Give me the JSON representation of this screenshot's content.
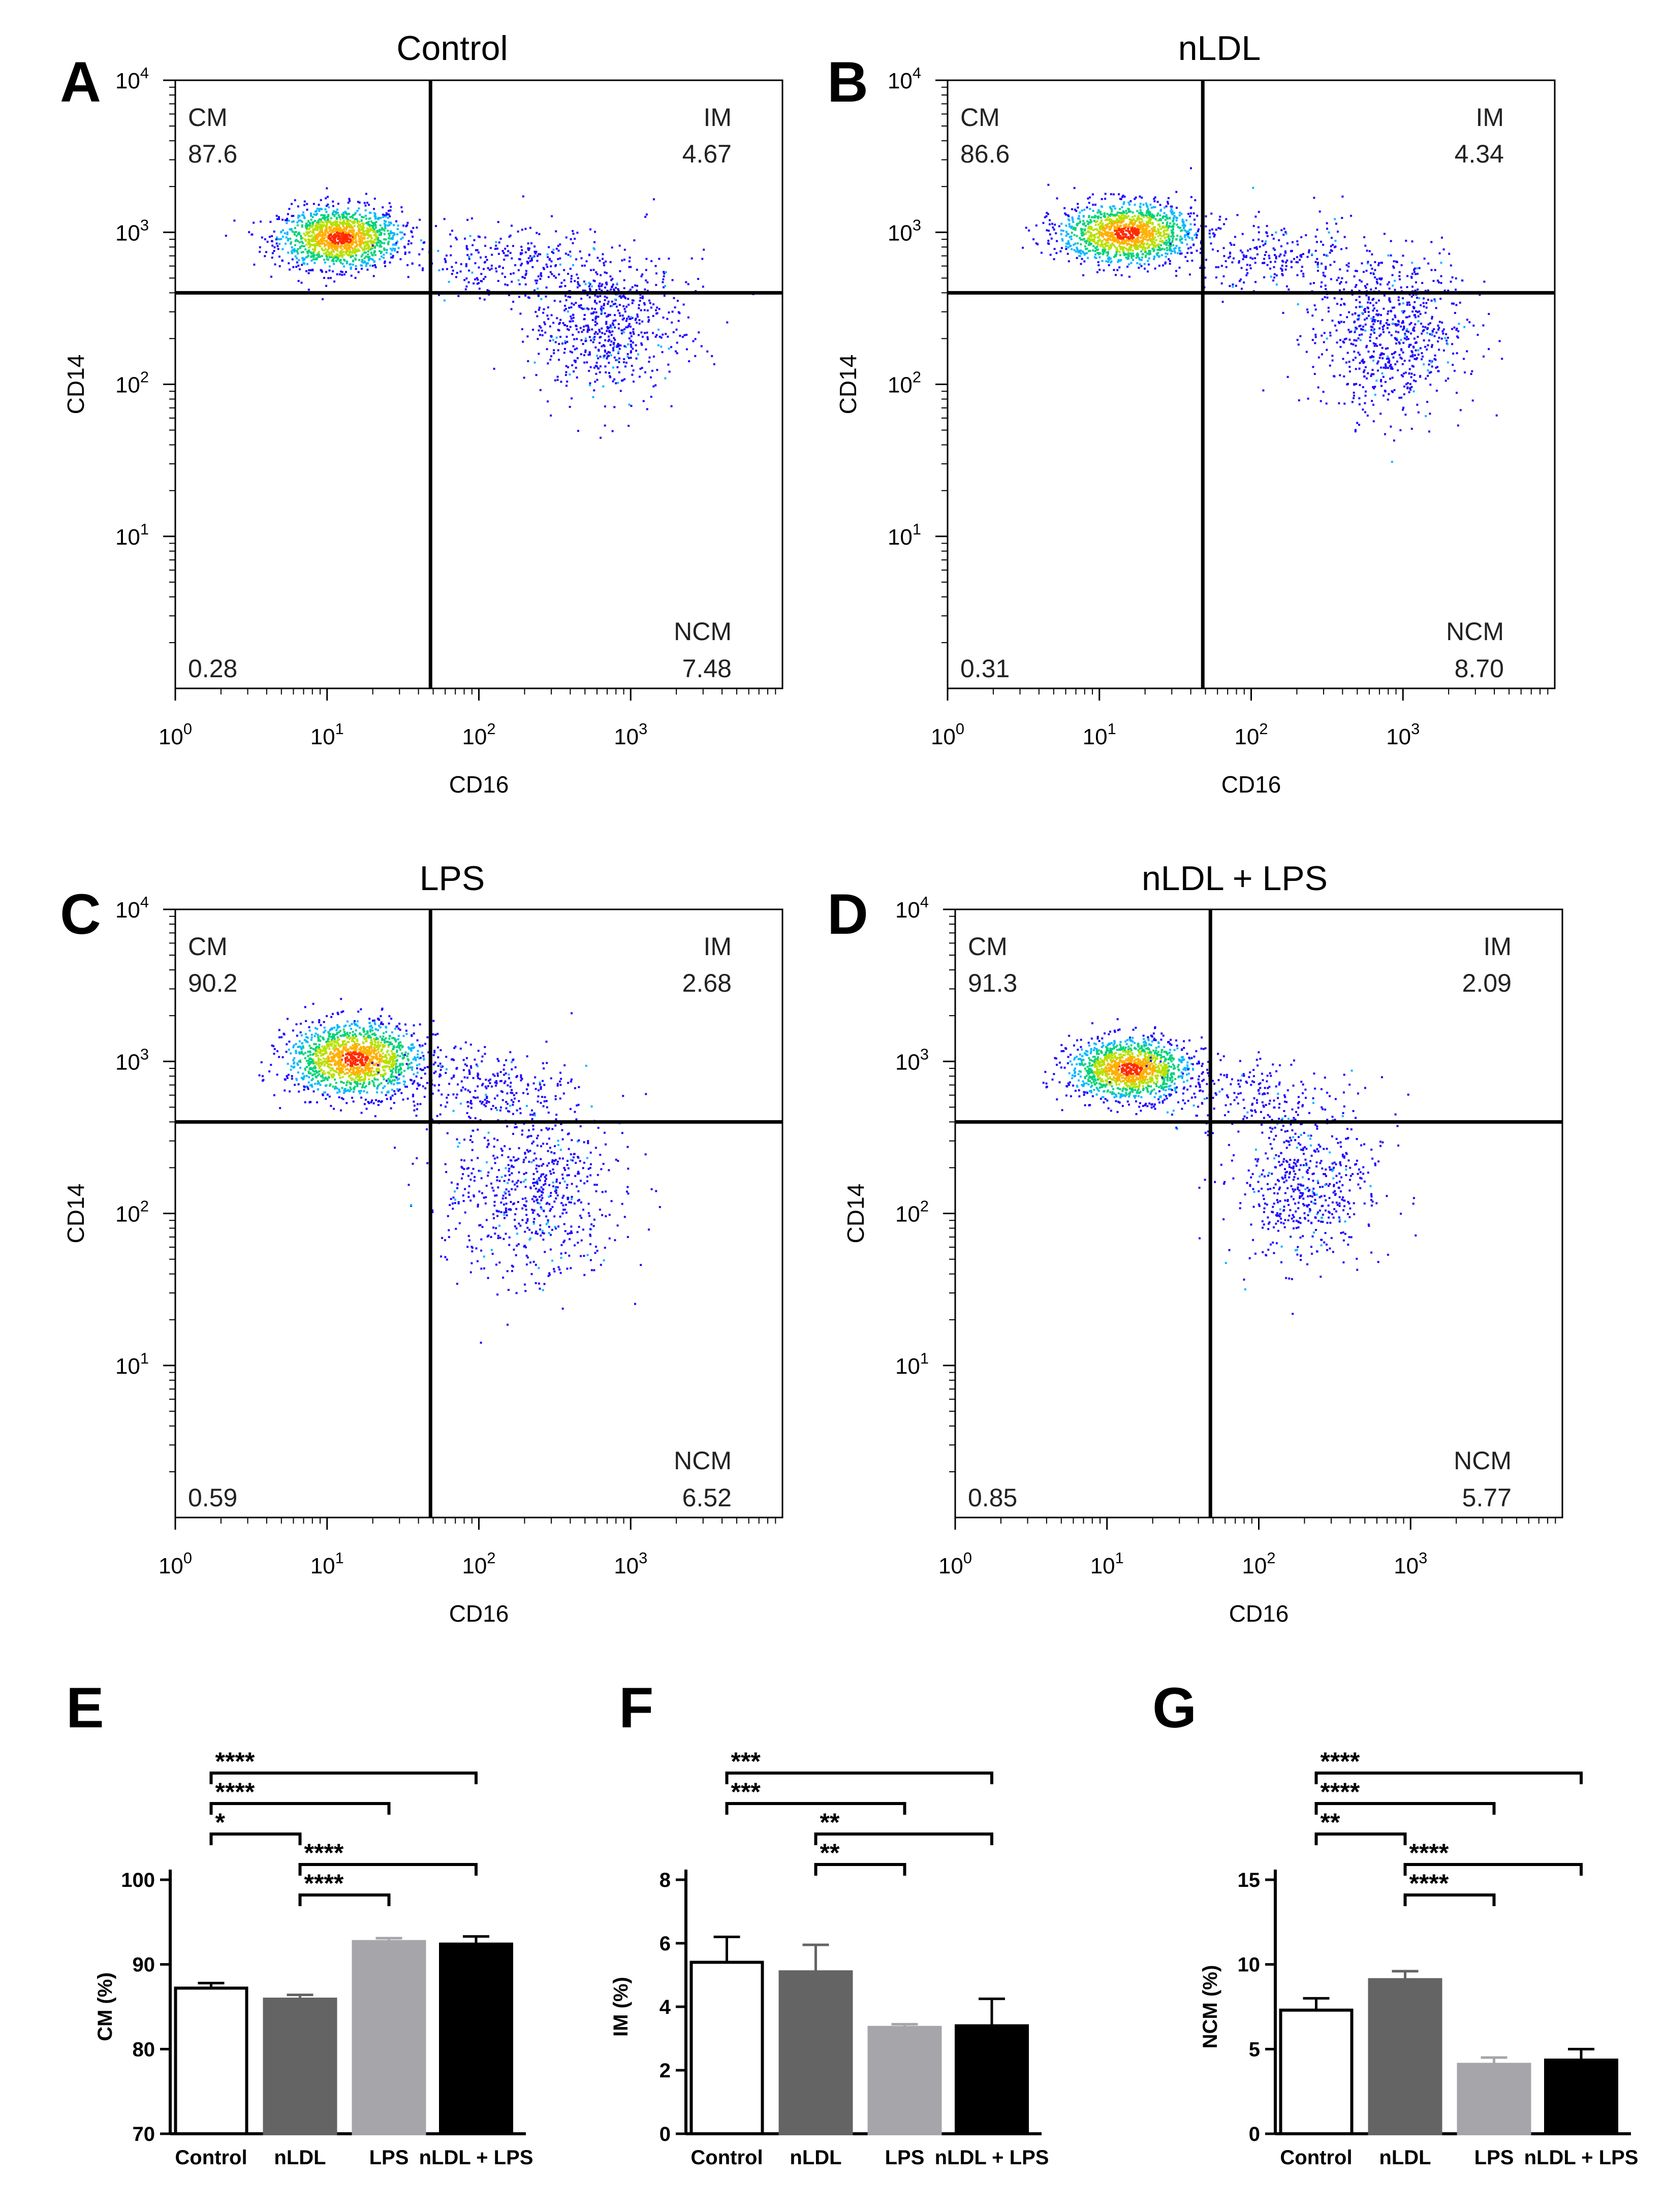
{
  "figure": {
    "flow_panels": [
      {
        "letter": "A",
        "title": "Control",
        "x_label": "CD16",
        "y_label": "CD14",
        "quadrants": {
          "cm_label": "CM",
          "cm_value": "87.6",
          "im_label": "IM",
          "im_value": "4.67",
          "ncm_label": "NCM",
          "ncm_value": "7.48",
          "dn_value": "0.28"
        },
        "gate": {
          "x": 48,
          "y": 400
        },
        "clusters": [
          {
            "cx": 12,
            "cy": 930,
            "sx": 0.2,
            "sy": 0.1,
            "n": 1400
          },
          {
            "cx": 700,
            "cy": 250,
            "sx": 0.25,
            "sy": 0.25,
            "n": 700
          },
          {
            "cx": 150,
            "cy": 650,
            "sx": 0.3,
            "sy": 0.12,
            "n": 250
          }
        ]
      },
      {
        "letter": "B",
        "title": "nLDL",
        "x_label": "CD16",
        "y_label": "CD14",
        "quadrants": {
          "cm_label": "CM",
          "cm_value": "86.6",
          "im_label": "IM",
          "im_value": "4.34",
          "ncm_label": "NCM",
          "ncm_value": "8.70",
          "dn_value": "0.31"
        },
        "gate": {
          "x": 48,
          "y": 400
        },
        "clusters": [
          {
            "cx": 15,
            "cy": 1000,
            "sx": 0.22,
            "sy": 0.1,
            "n": 1400
          },
          {
            "cx": 800,
            "cy": 220,
            "sx": 0.25,
            "sy": 0.25,
            "n": 750
          },
          {
            "cx": 150,
            "cy": 700,
            "sx": 0.3,
            "sy": 0.12,
            "n": 250
          }
        ]
      },
      {
        "letter": "C",
        "title": "LPS",
        "x_label": "CD16",
        "y_label": "CD14",
        "quadrants": {
          "cm_label": "CM",
          "cm_value": "90.2",
          "im_label": "IM",
          "im_value": "2.68",
          "ncm_label": "NCM",
          "ncm_value": "6.52",
          "dn_value": "0.59"
        },
        "gate": {
          "x": 48,
          "y": 400
        },
        "clusters": [
          {
            "cx": 15,
            "cy": 1050,
            "sx": 0.22,
            "sy": 0.12,
            "n": 1500
          },
          {
            "cx": 220,
            "cy": 150,
            "sx": 0.3,
            "sy": 0.3,
            "n": 700
          },
          {
            "cx": 100,
            "cy": 700,
            "sx": 0.3,
            "sy": 0.12,
            "n": 250
          }
        ]
      },
      {
        "letter": "D",
        "title": "nLDL + LPS",
        "x_label": "CD16",
        "y_label": "CD14",
        "quadrants": {
          "cm_label": "CM",
          "cm_value": "91.3",
          "im_label": "IM",
          "im_value": "2.09",
          "ncm_label": "NCM",
          "ncm_value": "5.77",
          "dn_value": "0.85"
        },
        "gate": {
          "x": 48,
          "y": 400
        },
        "clusters": [
          {
            "cx": 14,
            "cy": 900,
            "sx": 0.2,
            "sy": 0.1,
            "n": 1400
          },
          {
            "cx": 200,
            "cy": 150,
            "sx": 0.25,
            "sy": 0.25,
            "n": 550
          },
          {
            "cx": 80,
            "cy": 600,
            "sx": 0.3,
            "sy": 0.12,
            "n": 200
          }
        ]
      }
    ],
    "x_ticks": [
      {
        "base": "10",
        "exp": "0",
        "value": 1
      },
      {
        "base": "10",
        "exp": "1",
        "value": 10
      },
      {
        "base": "10",
        "exp": "2",
        "value": 100
      },
      {
        "base": "10",
        "exp": "3",
        "value": 1000
      }
    ],
    "y_ticks": [
      {
        "base": "10",
        "exp": "1",
        "value": 10
      },
      {
        "base": "10",
        "exp": "2",
        "value": 100
      },
      {
        "base": "10",
        "exp": "3",
        "value": 1000
      },
      {
        "base": "10",
        "exp": "4",
        "value": 10000
      }
    ],
    "bar_panels": [
      {
        "letter": "E",
        "ylabel": "CM (%)",
        "ylim": [
          70,
          100
        ],
        "yticks": [
          "70",
          "80",
          "90",
          "100"
        ],
        "ytick_values": [
          70,
          80,
          90,
          100
        ],
        "bars": [
          {
            "name": "Control",
            "value": 87.2,
            "err": 0.6,
            "color": "#ffffff"
          },
          {
            "name": "nLDL",
            "value": 85.9,
            "err": 0.5,
            "color": "#646464"
          },
          {
            "name": "LPS",
            "value": 92.7,
            "err": 0.4,
            "color": "#a6a6aa"
          },
          {
            "name": "nLDL + LPS",
            "value": 92.4,
            "err": 0.9,
            "color": "#000000"
          }
        ],
        "sig": [
          {
            "from": 0,
            "to": 3,
            "label": "****"
          },
          {
            "from": 0,
            "to": 2,
            "label": "****"
          },
          {
            "from": 0,
            "to": 1,
            "label": "*"
          },
          {
            "from": 1,
            "to": 3,
            "label": "****"
          },
          {
            "from": 1,
            "to": 2,
            "label": "****"
          }
        ]
      },
      {
        "letter": "F",
        "ylabel": "IM (%)",
        "ylim": [
          0,
          8
        ],
        "yticks": [
          "0",
          "2",
          "4",
          "6",
          "8"
        ],
        "ytick_values": [
          0,
          2,
          4,
          6,
          8
        ],
        "bars": [
          {
            "name": "Control",
            "value": 5.4,
            "err": 0.8,
            "color": "#ffffff"
          },
          {
            "name": "nLDL",
            "value": 5.1,
            "err": 0.85,
            "color": "#646464"
          },
          {
            "name": "LPS",
            "value": 3.35,
            "err": 0.1,
            "color": "#a6a6aa"
          },
          {
            "name": "nLDL + LPS",
            "value": 3.4,
            "err": 0.85,
            "color": "#000000"
          }
        ],
        "sig": [
          {
            "from": 0,
            "to": 3,
            "label": "***"
          },
          {
            "from": 0,
            "to": 2,
            "label": "***"
          },
          {
            "from": 1,
            "to": 3,
            "label": "**"
          },
          {
            "from": 1,
            "to": 2,
            "label": "**"
          }
        ]
      },
      {
        "letter": "G",
        "ylabel": "NCM (%)",
        "ylim": [
          0,
          15
        ],
        "yticks": [
          "0",
          "5",
          "10",
          "15"
        ],
        "ytick_values": [
          0,
          5,
          10,
          15
        ],
        "bars": [
          {
            "name": "Control",
            "value": 7.3,
            "err": 0.7,
            "color": "#ffffff"
          },
          {
            "name": "nLDL",
            "value": 9.1,
            "err": 0.5,
            "color": "#646464"
          },
          {
            "name": "LPS",
            "value": 4.1,
            "err": 0.4,
            "color": "#a6a6aa"
          },
          {
            "name": "nLDL + LPS",
            "value": 4.35,
            "err": 0.65,
            "color": "#000000"
          }
        ],
        "sig": [
          {
            "from": 0,
            "to": 3,
            "label": "****"
          },
          {
            "from": 0,
            "to": 2,
            "label": "****"
          },
          {
            "from": 0,
            "to": 1,
            "label": "**"
          },
          {
            "from": 1,
            "to": 3,
            "label": "****"
          },
          {
            "from": 1,
            "to": 2,
            "label": "****"
          }
        ]
      }
    ]
  },
  "chart_data": [
    {
      "type": "scatter",
      "panel": "A",
      "title": "Control",
      "xlabel": "CD16",
      "ylabel": "CD14",
      "xscale": "log",
      "yscale": "log",
      "xlim": [
        1,
        10000
      ],
      "ylim": [
        1,
        10000
      ],
      "quadrant_percentages": {
        "CM": 87.6,
        "IM": 4.67,
        "NCM": 7.48,
        "double_negative": 0.28
      }
    },
    {
      "type": "scatter",
      "panel": "B",
      "title": "nLDL",
      "xlabel": "CD16",
      "ylabel": "CD14",
      "xscale": "log",
      "yscale": "log",
      "xlim": [
        1,
        10000
      ],
      "ylim": [
        1,
        10000
      ],
      "quadrant_percentages": {
        "CM": 86.6,
        "IM": 4.34,
        "NCM": 8.7,
        "double_negative": 0.31
      }
    },
    {
      "type": "scatter",
      "panel": "C",
      "title": "LPS",
      "xlabel": "CD16",
      "ylabel": "CD14",
      "xscale": "log",
      "yscale": "log",
      "xlim": [
        1,
        10000
      ],
      "ylim": [
        1,
        10000
      ],
      "quadrant_percentages": {
        "CM": 90.2,
        "IM": 2.68,
        "NCM": 6.52,
        "double_negative": 0.59
      }
    },
    {
      "type": "scatter",
      "panel": "D",
      "title": "nLDL + LPS",
      "xlabel": "CD16",
      "ylabel": "CD14",
      "xscale": "log",
      "yscale": "log",
      "xlim": [
        1,
        10000
      ],
      "ylim": [
        1,
        10000
      ],
      "quadrant_percentages": {
        "CM": 91.3,
        "IM": 2.09,
        "NCM": 5.77,
        "double_negative": 0.85
      }
    },
    {
      "type": "bar",
      "panel": "E",
      "categories": [
        "Control",
        "nLDL",
        "LPS",
        "nLDL + LPS"
      ],
      "values": [
        87.2,
        85.9,
        92.7,
        92.4
      ],
      "errors": [
        0.6,
        0.5,
        0.4,
        0.9
      ],
      "ylabel": "CM (%)",
      "ylim": [
        70,
        100
      ]
    },
    {
      "type": "bar",
      "panel": "F",
      "categories": [
        "Control",
        "nLDL",
        "LPS",
        "nLDL + LPS"
      ],
      "values": [
        5.4,
        5.1,
        3.35,
        3.4
      ],
      "errors": [
        0.8,
        0.85,
        0.1,
        0.85
      ],
      "ylabel": "IM (%)",
      "ylim": [
        0,
        8
      ]
    },
    {
      "type": "bar",
      "panel": "G",
      "categories": [
        "Control",
        "nLDL",
        "LPS",
        "nLDL + LPS"
      ],
      "values": [
        7.3,
        9.1,
        4.1,
        4.35
      ],
      "errors": [
        0.7,
        0.5,
        0.4,
        0.65
      ],
      "ylabel": "NCM (%)",
      "ylim": [
        0,
        15
      ]
    }
  ]
}
